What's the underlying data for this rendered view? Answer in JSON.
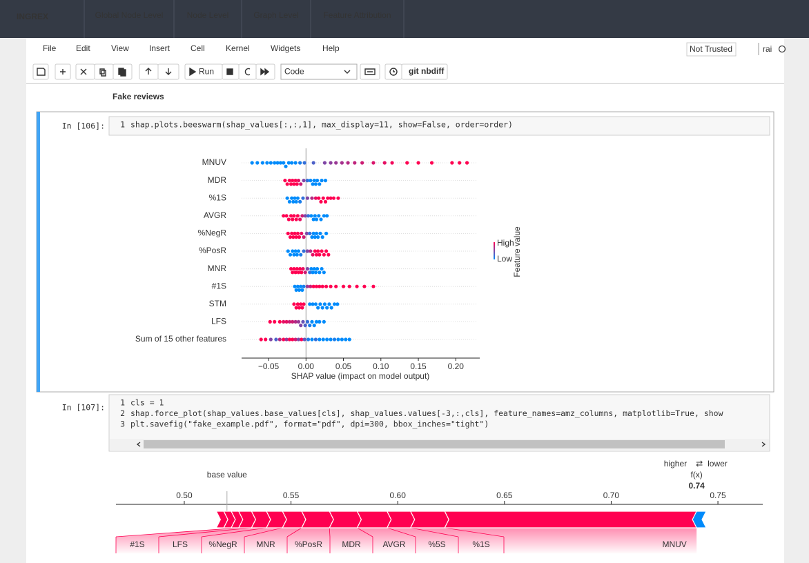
{
  "nav": {
    "brand": "INGREX",
    "tabs": [
      "Global Node Level",
      "Node Level",
      "Graph Level",
      "Feature Attribution"
    ]
  },
  "menu": {
    "items": [
      "File",
      "Edit",
      "View",
      "Insert",
      "Cell",
      "Kernel",
      "Widgets",
      "Help"
    ],
    "trust": "Not Trusted",
    "kernel": "rai"
  },
  "toolbar": {
    "run": "Run",
    "cell_type": "Code",
    "nbdiff": "git nbdiff"
  },
  "heading": "Fake reviews",
  "cells": [
    {
      "prompt": "In [106]:",
      "lines": [
        {
          "number": 1,
          "code": "shap.plots.beeswarm(shap_values[:,:,1], max_display=11, show=False, order=order)"
        }
      ]
    },
    {
      "prompt": "In [107]:",
      "lines": [
        {
          "number": 1,
          "code": "cls = 1"
        },
        {
          "number": 2,
          "code": "shap.force_plot(shap_values.base_values[cls], shap_values.values[-3,:,cls], feature_names=amz_columns, matplotlib=True, show"
        },
        {
          "number": 3,
          "code": "plt.savefig(\"fake_example.pdf\", format=\"pdf\", dpi=300, bbox_inches=\"tight\")"
        }
      ]
    }
  ],
  "chart_data": [
    {
      "type": "beeswarm",
      "xlabel": "SHAP value (impact on model output)",
      "xlim": [
        -0.086,
        0.232
      ],
      "xticks": [
        {
          "value": -0.05,
          "label": "−0.05"
        },
        {
          "value": 0,
          "label": "0.00"
        },
        0.05,
        {
          "value": 0.1,
          "label": "0.10"
        },
        0.15,
        {
          "value": 0.2,
          "label": "0.20"
        }
      ],
      "colorbar": {
        "label": "Feature value",
        "high": "High",
        "low": "Low",
        "low_color": "#008bfb",
        "high_color": "#ff0051"
      },
      "series": [
        {
          "name": "MNUV",
          "values": [
            -0.072,
            -0.065,
            -0.058,
            -0.052,
            -0.047,
            -0.042,
            -0.038,
            -0.034,
            -0.03,
            -0.027,
            -0.023,
            -0.019,
            -0.014,
            -0.008,
            -0.002,
            0.01,
            0.025,
            0.033,
            0.04,
            0.048,
            0.056,
            0.065,
            0.075,
            0.09,
            0.105,
            0.115,
            0.135,
            0.15,
            0.168,
            0.195,
            0.205,
            0.215
          ],
          "feature_values": [
            0,
            0,
            0,
            0,
            0,
            0,
            0,
            0,
            0,
            0,
            0,
            0,
            0,
            0.1,
            0.2,
            0.3,
            0.5,
            0.55,
            0.6,
            0.65,
            0.7,
            0.75,
            0.8,
            0.85,
            0.9,
            0.95,
            1,
            1,
            1,
            1,
            1,
            1
          ]
        },
        {
          "name": "MDR",
          "values": [
            -0.028,
            -0.025,
            -0.022,
            -0.02,
            -0.018,
            -0.016,
            -0.014,
            -0.012,
            -0.01,
            -0.007,
            -0.003,
            0.002,
            0.006,
            0.009,
            0.011,
            0.013,
            0.015,
            0.018,
            0.021,
            0.026
          ],
          "feature_values": [
            1,
            1,
            1,
            1,
            1,
            1,
            1,
            1,
            0.9,
            0.8,
            0.5,
            0.2,
            0,
            0,
            0,
            0,
            0,
            0,
            0,
            0
          ]
        },
        {
          "name": "%1S",
          "values": [
            -0.025,
            -0.022,
            -0.019,
            -0.017,
            -0.015,
            -0.013,
            -0.011,
            -0.008,
            -0.004,
            0.002,
            0.008,
            0.013,
            0.017,
            0.02,
            0.023,
            0.026,
            0.029,
            0.033,
            0.037,
            0.043
          ],
          "feature_values": [
            0,
            0,
            0,
            0,
            0,
            0,
            0,
            0.1,
            0.2,
            0.5,
            0.7,
            0.9,
            1,
            1,
            1,
            1,
            1,
            1,
            1,
            1
          ]
        },
        {
          "name": "AVGR",
          "values": [
            -0.03,
            -0.026,
            -0.023,
            -0.02,
            -0.018,
            -0.016,
            -0.013,
            -0.011,
            -0.008,
            -0.005,
            -0.001,
            0.003,
            0.007,
            0.01,
            0.012,
            0.014,
            0.017,
            0.02,
            0.024,
            0.028
          ],
          "feature_values": [
            1,
            1,
            1,
            1,
            1,
            1,
            1,
            1,
            0.9,
            0.8,
            0.5,
            0.2,
            0,
            0,
            0,
            0,
            0,
            0,
            0,
            0
          ]
        },
        {
          "name": "%NegR",
          "values": [
            -0.024,
            -0.021,
            -0.019,
            -0.017,
            -0.015,
            -0.013,
            -0.011,
            -0.009,
            -0.006,
            -0.003,
            0.001,
            0.005,
            0.008,
            0.01,
            0.012,
            0.014,
            0.016,
            0.019,
            0.022,
            0.027
          ],
          "feature_values": [
            1,
            1,
            1,
            1,
            1,
            1,
            1,
            1,
            0.9,
            0.8,
            0.5,
            0.2,
            0,
            0,
            0,
            0,
            0,
            0,
            0,
            0
          ]
        },
        {
          "name": "%PosR",
          "values": [
            -0.024,
            -0.021,
            -0.018,
            -0.016,
            -0.014,
            -0.012,
            -0.01,
            -0.007,
            -0.003,
            0.002,
            0.006,
            0.009,
            0.012,
            0.014,
            0.016,
            0.018,
            0.021,
            0.024,
            0.027,
            0.03
          ],
          "feature_values": [
            0,
            0,
            0,
            0,
            0,
            0,
            0,
            0.1,
            0.2,
            0.5,
            0.7,
            0.9,
            1,
            1,
            1,
            1,
            1,
            1,
            1,
            1
          ]
        },
        {
          "name": "MNR",
          "values": [
            -0.02,
            -0.018,
            -0.016,
            -0.014,
            -0.012,
            -0.01,
            -0.008,
            -0.006,
            -0.004,
            -0.001,
            0.002,
            0.005,
            0.007,
            0.009,
            0.011,
            0.013,
            0.015,
            0.018,
            0.021,
            0.024
          ],
          "feature_values": [
            1,
            1,
            1,
            1,
            1,
            1,
            1,
            1,
            0.9,
            0.8,
            0.5,
            0.2,
            0,
            0,
            0,
            0,
            0,
            0,
            0,
            0
          ]
        },
        {
          "name": "#1S",
          "values": [
            -0.015,
            -0.013,
            -0.011,
            -0.009,
            -0.007,
            -0.005,
            -0.003,
            0.002,
            0.006,
            0.01,
            0.014,
            0.018,
            0.022,
            0.027,
            0.033,
            0.04,
            0.05,
            0.058,
            0.068,
            0.078,
            0.09
          ],
          "feature_values": [
            0,
            0,
            0,
            0,
            0,
            0,
            0.1,
            0.6,
            0.8,
            1,
            1,
            1,
            1,
            1,
            1,
            1,
            1,
            1,
            1,
            1,
            1
          ]
        },
        {
          "name": "STM",
          "values": [
            -0.016,
            -0.013,
            -0.011,
            -0.009,
            -0.007,
            -0.005,
            -0.003,
            0.005,
            0.009,
            0.013,
            0.016,
            0.019,
            0.022,
            0.025,
            0.028,
            0.031,
            0.034,
            0.038,
            0.042
          ],
          "feature_values": [
            1,
            1,
            1,
            1,
            1,
            1,
            1,
            0,
            0,
            0,
            0,
            0,
            0,
            0,
            0,
            0,
            0,
            0,
            0
          ]
        },
        {
          "name": "LFS",
          "values": [
            -0.048,
            -0.042,
            -0.035,
            -0.03,
            -0.026,
            -0.022,
            -0.018,
            -0.014,
            -0.01,
            -0.007,
            -0.004,
            -0.001,
            0.002,
            0.005,
            0.008,
            0.011,
            0.014,
            0.018,
            0.024
          ],
          "feature_values": [
            1,
            1,
            1,
            0.9,
            0.9,
            0.8,
            0.8,
            0.7,
            0.6,
            0.5,
            0.4,
            0.3,
            0.2,
            0.1,
            0,
            0,
            0,
            0,
            0
          ]
        },
        {
          "name": "Sum of 15 other features",
          "values": [
            -0.06,
            -0.054,
            -0.047,
            -0.04,
            -0.035,
            -0.03,
            -0.026,
            -0.022,
            -0.018,
            -0.014,
            -0.01,
            -0.006,
            -0.002,
            0.003,
            0.008,
            0.013,
            0.018,
            0.023,
            0.028,
            0.033,
            0.038,
            0.043,
            0.048,
            0.053,
            0.058
          ],
          "feature_values": [
            1,
            1,
            0.5,
            0.3,
            0.7,
            1,
            0.6,
            1,
            1,
            0.8,
            0.5,
            1,
            0.4,
            0.1,
            0,
            0.2,
            0,
            0,
            0,
            0,
            0.1,
            0,
            0,
            0,
            0
          ]
        }
      ]
    },
    {
      "type": "force",
      "base_label": "base value",
      "base_value": 0.52,
      "fx_label": "f(x)",
      "fx": 0.74,
      "higher": "higher",
      "arrows": "⇄",
      "lower": "lower",
      "higher_color": "#ff0051",
      "lower_color": "#008bfb",
      "xlim": [
        0.468,
        0.771
      ],
      "xticks": [
        {
          "value": 0.5,
          "label": "0.50"
        },
        0.55,
        {
          "value": 0.6,
          "label": "0.60"
        },
        0.65,
        {
          "value": 0.7,
          "label": "0.70"
        },
        0.75
      ],
      "features": [
        null,
        null,
        null,
        "#1S",
        "LFS",
        "%NegR",
        "MNR",
        "%PosR",
        "MDR",
        "AVGR",
        "%5S",
        "%1S",
        "MNUV",
        null
      ],
      "values": [
        0.0035,
        0.0035,
        0.0035,
        0.006,
        0.007,
        0.0075,
        0.009,
        0.013,
        0.013,
        0.014,
        0.011,
        0.016,
        0.118,
        -0.0045
      ]
    }
  ]
}
